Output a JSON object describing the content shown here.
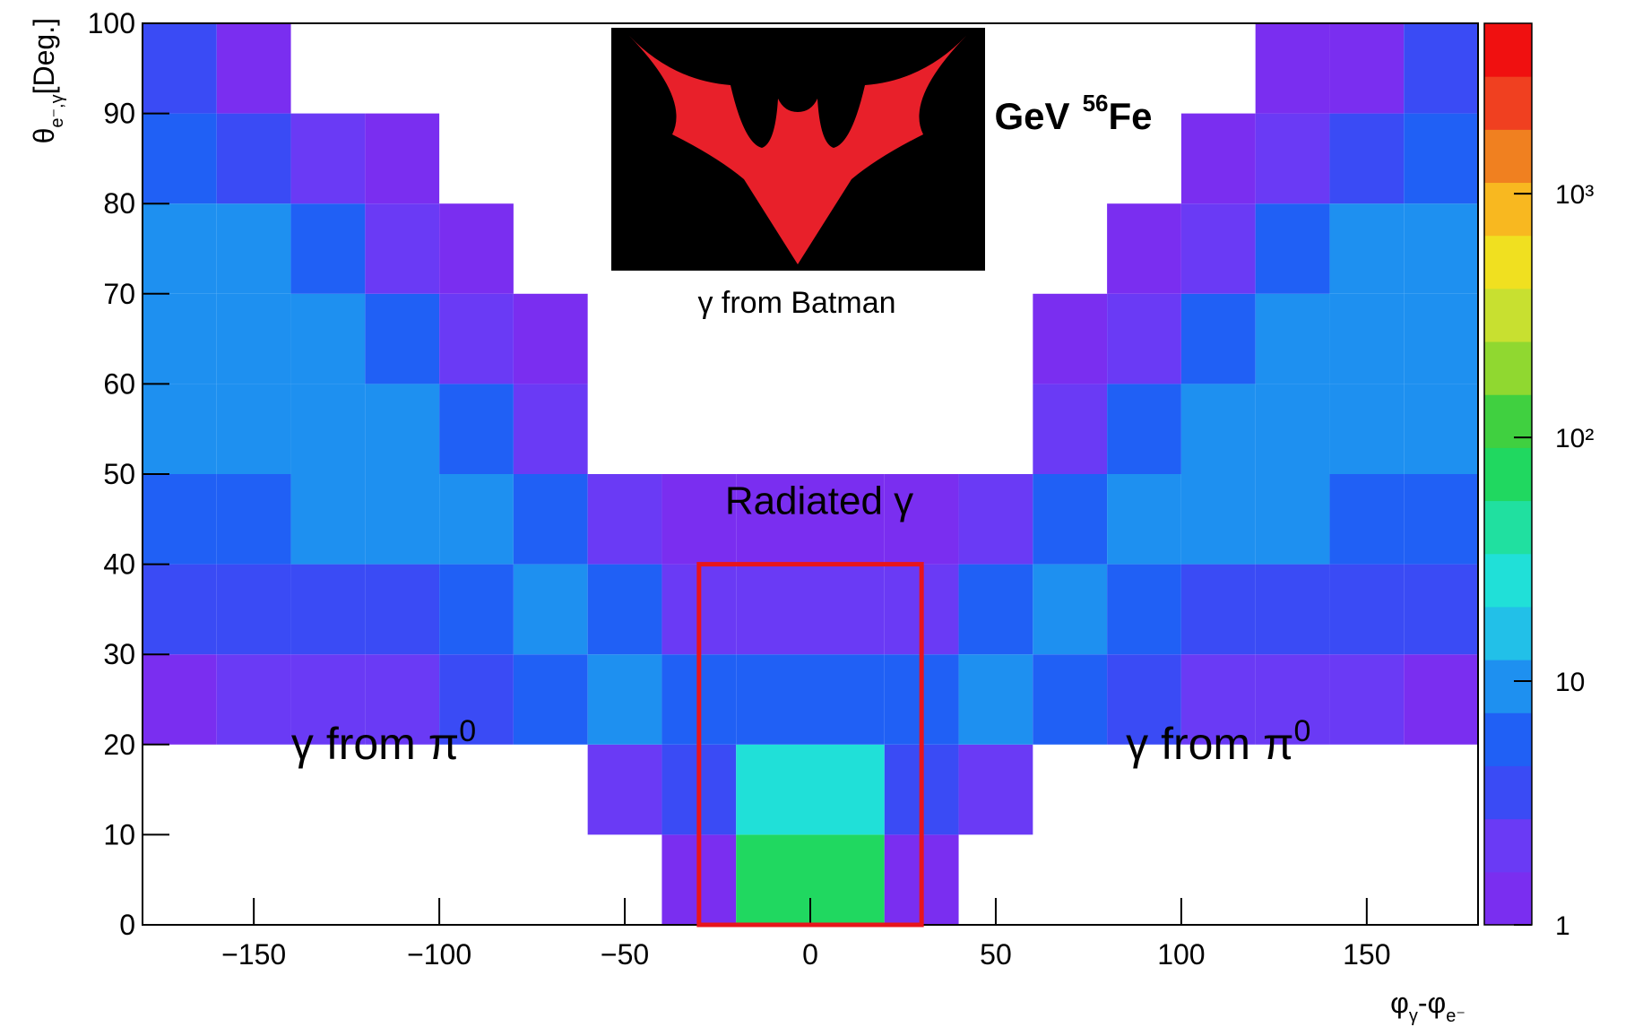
{
  "chart_data": {
    "type": "heatmap",
    "title": "2 GeV",
    "title_sup": "56",
    "title_element": "Fe",
    "y_label": {
      "main": "θ",
      "sub": "e⁻,γ",
      "unit": "[Deg.]"
    },
    "x_label": {
      "a": "φ",
      "a_sub": "γ",
      "b": "-φ",
      "b_sub": "e⁻"
    },
    "xbins": [
      -180,
      -160,
      -140,
      -120,
      -100,
      -80,
      -60,
      -40,
      -20,
      0,
      20,
      40,
      60,
      80,
      100,
      120,
      140,
      160,
      180
    ],
    "ybins": [
      0,
      10,
      20,
      30,
      40,
      50,
      60,
      70,
      80,
      90,
      100
    ],
    "z": [
      [
        0,
        0,
        0,
        0,
        0,
        0,
        0,
        1,
        60,
        60,
        1,
        0,
        0,
        0,
        0,
        0,
        0,
        0
      ],
      [
        0,
        0,
        0,
        0,
        0,
        0,
        2,
        4,
        25,
        25,
        4,
        2,
        0,
        0,
        0,
        0,
        0,
        0
      ],
      [
        1,
        2,
        2,
        2,
        3,
        5,
        8,
        6,
        5,
        5,
        6,
        8,
        5,
        3,
        2,
        2,
        2,
        1
      ],
      [
        3,
        4,
        4,
        4,
        6,
        10,
        6,
        2,
        2,
        2,
        2,
        6,
        10,
        6,
        4,
        4,
        4,
        3
      ],
      [
        5,
        6,
        8,
        8,
        8,
        5,
        2,
        1,
        1,
        1,
        1,
        2,
        5,
        8,
        8,
        8,
        6,
        5
      ],
      [
        8,
        10,
        12,
        10,
        5,
        2,
        0,
        0,
        0,
        0,
        0,
        0,
        2,
        5,
        10,
        12,
        10,
        8
      ],
      [
        10,
        12,
        12,
        6,
        2,
        1,
        0,
        0,
        0,
        0,
        0,
        0,
        1,
        2,
        6,
        12,
        12,
        10
      ],
      [
        10,
        8,
        5,
        2,
        1,
        0,
        0,
        0,
        0,
        0,
        0,
        0,
        0,
        1,
        2,
        5,
        8,
        10
      ],
      [
        6,
        4,
        2,
        1,
        0,
        0,
        0,
        0,
        0,
        0,
        0,
        0,
        0,
        0,
        1,
        2,
        4,
        6
      ],
      [
        3,
        1,
        0,
        0,
        0,
        0,
        0,
        0,
        0,
        0,
        0,
        0,
        0,
        0,
        0,
        1,
        1,
        3
      ]
    ],
    "xlim": [
      -180,
      180
    ],
    "ylim": [
      0,
      100
    ],
    "xticks": [
      {
        "value": -150,
        "label": "−150"
      },
      {
        "value": -100,
        "label": "−100"
      },
      {
        "value": -50,
        "label": "−50"
      },
      0,
      50,
      100,
      150
    ],
    "yticks": [
      0,
      10,
      20,
      30,
      40,
      50,
      60,
      70,
      80,
      90,
      100
    ],
    "zlim": [
      1,
      5000
    ],
    "zlog": true,
    "zticks": [
      1,
      10,
      {
        "value": 100,
        "label": "10²"
      },
      {
        "value": 1000,
        "label": "10³"
      }
    ],
    "colormap": [
      "#7a2ef0",
      "#6a3af5",
      "#3a4bf5",
      "#2060f5",
      "#1e90f0",
      "#22c0e8",
      "#20e0d8",
      "#20e0a0",
      "#20d860",
      "#40d040",
      "#90d830",
      "#c8e030",
      "#f0e020",
      "#f8b820",
      "#f08020",
      "#f04020",
      "#f01010"
    ],
    "box": {
      "x": [
        -30,
        30
      ],
      "y": [
        0,
        40
      ],
      "color": "#e8151b"
    },
    "box_label": "Radiated γ",
    "image_caption": "γ from Batman",
    "annotations": [
      {
        "text": "γ from π",
        "sup": "0",
        "x": -115,
        "y": 20
      },
      {
        "text": "γ from π",
        "sup": "0",
        "x": 110,
        "y": 20
      }
    ]
  }
}
